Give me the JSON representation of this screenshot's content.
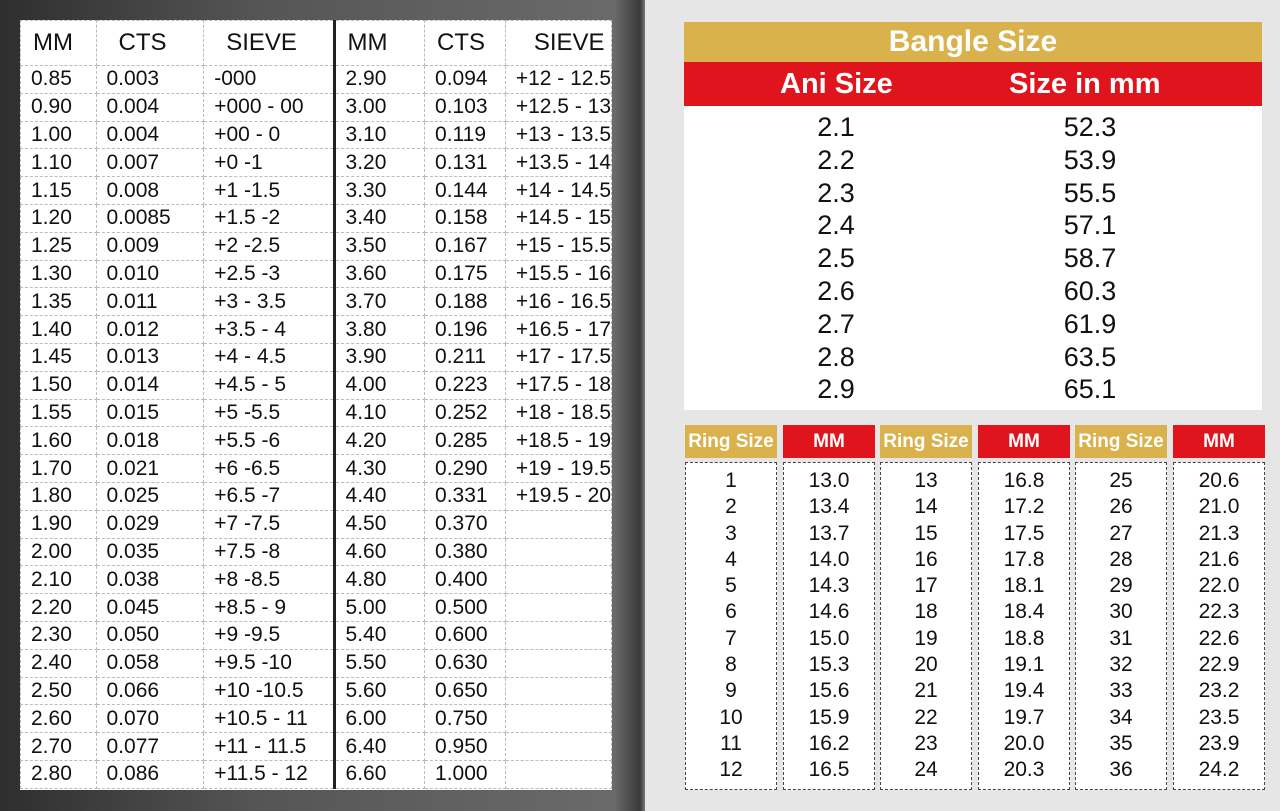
{
  "sieve_chart": {
    "headers": [
      "MM",
      "CTS",
      "SIEVE",
      "MM",
      "CTS",
      "SIEVE"
    ],
    "left": [
      [
        "0.85",
        "0.003",
        "-000"
      ],
      [
        "0.90",
        "0.004",
        "+000 - 00"
      ],
      [
        "1.00",
        "0.004",
        "+00 - 0"
      ],
      [
        "1.10",
        "0.007",
        "+0 -1"
      ],
      [
        "1.15",
        "0.008",
        "+1 -1.5"
      ],
      [
        "1.20",
        "0.0085",
        "+1.5 -2"
      ],
      [
        "1.25",
        "0.009",
        "+2 -2.5"
      ],
      [
        "1.30",
        "0.010",
        "+2.5 -3"
      ],
      [
        "1.35",
        "0.011",
        "+3 - 3.5"
      ],
      [
        "1.40",
        "0.012",
        "+3.5 - 4"
      ],
      [
        "1.45",
        "0.013",
        "+4 - 4.5"
      ],
      [
        "1.50",
        "0.014",
        "+4.5 - 5"
      ],
      [
        "1.55",
        "0.015",
        "+5 -5.5"
      ],
      [
        "1.60",
        "0.018",
        "+5.5 -6"
      ],
      [
        "1.70",
        "0.021",
        "+6 -6.5"
      ],
      [
        "1.80",
        "0.025",
        "+6.5 -7"
      ],
      [
        "1.90",
        "0.029",
        "+7 -7.5"
      ],
      [
        "2.00",
        "0.035",
        "+7.5 -8"
      ],
      [
        "2.10",
        "0.038",
        "+8 -8.5"
      ],
      [
        "2.20",
        "0.045",
        "+8.5 - 9"
      ],
      [
        "2.30",
        "0.050",
        "+9 -9.5"
      ],
      [
        "2.40",
        "0.058",
        "+9.5 -10"
      ],
      [
        "2.50",
        "0.066",
        "+10 -10.5"
      ],
      [
        "2.60",
        "0.070",
        "+10.5 - 11"
      ],
      [
        "2.70",
        "0.077",
        "+11 - 11.5"
      ],
      [
        "2.80",
        "0.086",
        "+11.5 - 12"
      ]
    ],
    "right": [
      [
        "2.90",
        "0.094",
        "+12 - 12.5"
      ],
      [
        "3.00",
        "0.103",
        "+12.5  - 13"
      ],
      [
        "3.10",
        "0.119",
        "+13 - 13.5"
      ],
      [
        "3.20",
        "0.131",
        "+13.5 - 14"
      ],
      [
        "3.30",
        "0.144",
        "+14 - 14.5"
      ],
      [
        "3.40",
        "0.158",
        "+14.5 - 15"
      ],
      [
        "3.50",
        "0.167",
        "+15 - 15.5"
      ],
      [
        "3.60",
        "0.175",
        "+15.5 - 16"
      ],
      [
        "3.70",
        "0.188",
        "+16 - 16.5"
      ],
      [
        "3.80",
        "0.196",
        "+16.5 - 17"
      ],
      [
        "3.90",
        "0.211",
        "+17 - 17.5"
      ],
      [
        "4.00",
        "0.223",
        "+17.5 - 18"
      ],
      [
        "4.10",
        "0.252",
        "+18 - 18.5"
      ],
      [
        "4.20",
        "0.285",
        "+18.5 - 19"
      ],
      [
        "4.30",
        "0.290",
        "+19 - 19.5"
      ],
      [
        "4.40",
        "0.331",
        "+19.5 - 20"
      ],
      [
        "4.50",
        "0.370",
        ""
      ],
      [
        "4.60",
        "0.380",
        ""
      ],
      [
        "4.80",
        "0.400",
        ""
      ],
      [
        "5.00",
        "0.500",
        ""
      ],
      [
        "5.40",
        "0.600",
        ""
      ],
      [
        "5.50",
        "0.630",
        ""
      ],
      [
        "5.60",
        "0.650",
        ""
      ],
      [
        "6.00",
        "0.750",
        ""
      ],
      [
        "6.40",
        "0.950",
        ""
      ],
      [
        "6.60",
        "1.000",
        ""
      ]
    ]
  },
  "bangle": {
    "title": "Bangle Size",
    "col_ani": "Ani Size",
    "col_mm": "Size in mm",
    "rows": [
      [
        "2.1",
        "52.3"
      ],
      [
        "2.2",
        "53.9"
      ],
      [
        "2.3",
        "55.5"
      ],
      [
        "2.4",
        "57.1"
      ],
      [
        "2.5",
        "58.7"
      ],
      [
        "2.6",
        "60.3"
      ],
      [
        "2.7",
        "61.9"
      ],
      [
        "2.8",
        "63.5"
      ],
      [
        "2.9",
        "65.1"
      ]
    ]
  },
  "ring": {
    "size_label": "Ring Size",
    "mm_label": "MM",
    "groups": [
      {
        "sizes": [
          "1",
          "2",
          "3",
          "4",
          "5",
          "6",
          "7",
          "8",
          "9",
          "10",
          "11",
          "12"
        ],
        "mm": [
          "13.0",
          "13.4",
          "13.7",
          "14.0",
          "14.3",
          "14.6",
          "15.0",
          "15.3",
          "15.6",
          "15.9",
          "16.2",
          "16.5"
        ]
      },
      {
        "sizes": [
          "13",
          "14",
          "15",
          "16",
          "17",
          "18",
          "19",
          "20",
          "21",
          "22",
          "23",
          "24"
        ],
        "mm": [
          "16.8",
          "17.2",
          "17.5",
          "17.8",
          "18.1",
          "18.4",
          "18.8",
          "19.1",
          "19.4",
          "19.7",
          "20.0",
          "20.3"
        ]
      },
      {
        "sizes": [
          "25",
          "26",
          "27",
          "28",
          "29",
          "30",
          "31",
          "32",
          "33",
          "34",
          "35",
          "36"
        ],
        "mm": [
          "20.6",
          "21.0",
          "21.3",
          "21.6",
          "22.0",
          "22.3",
          "22.6",
          "22.9",
          "23.2",
          "23.5",
          "23.9",
          "24.2"
        ]
      }
    ]
  },
  "colors": {
    "gold": "#d9b24e",
    "red": "#e0141c"
  }
}
